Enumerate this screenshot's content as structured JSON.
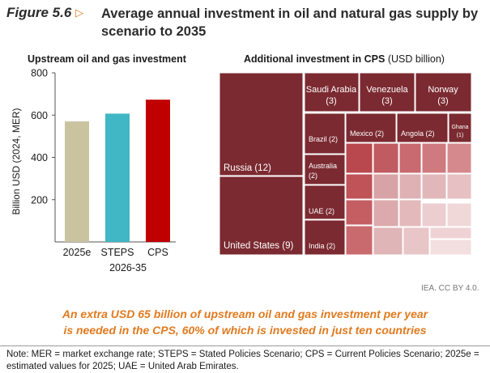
{
  "header": {
    "figure_label": "Figure 5.6",
    "title": "Average annual investment in oil and natural gas supply by scenario to 2035"
  },
  "chart_data": [
    {
      "type": "bar",
      "title": "Upstream oil and gas investment",
      "ylabel": "Billion USD (2024, MER)",
      "xlabel": "2026-35",
      "ylim": [
        0,
        800
      ],
      "yticks": [
        200,
        400,
        600,
        800
      ],
      "categories": [
        "2025e",
        "STEPS",
        "CPS"
      ],
      "values": [
        570,
        607,
        673
      ],
      "colors": [
        "#c9c3a0",
        "#41b6c4",
        "#c00000"
      ]
    },
    {
      "type": "treemap",
      "title": "Additional investment in CPS",
      "unit": "(USD billion)",
      "labeled": [
        {
          "label": "Russia (12)",
          "value": 12
        },
        {
          "label": "United States (9)",
          "value": 9
        },
        {
          "label": "Saudi Arabia (3)",
          "value": 3
        },
        {
          "label": "Venezuela (3)",
          "value": 3
        },
        {
          "label": "Norway (3)",
          "value": 3
        },
        {
          "label": "Brazil (2)",
          "value": 2
        },
        {
          "label": "Australia (2)",
          "value": 2
        },
        {
          "label": "UAE (2)",
          "value": 2
        },
        {
          "label": "India (2)",
          "value": 2
        },
        {
          "label": "Mexico (2)",
          "value": 2
        },
        {
          "label": "Angola (2)",
          "value": 2
        },
        {
          "label": "Ghana (1)",
          "value": 1
        }
      ]
    }
  ],
  "footer": {
    "credit": "IEA. CC BY 4.0.",
    "callout_line1": "An extra USD 65 billion of upstream oil and gas investment per year",
    "callout_line2": "is needed in the CPS, 60% of which is invested in just ten countries",
    "note": "Note: MER = market exchange rate; STEPS = Stated Policies Scenario; CPS = Current Policies Scenario; 2025e = estimated values for 2025; UAE = United Arab Emirates."
  },
  "colors": {
    "accent": "#e07a1f",
    "treemap_dark": "#7b2a31",
    "treemap_light": "#f0d8d8"
  }
}
